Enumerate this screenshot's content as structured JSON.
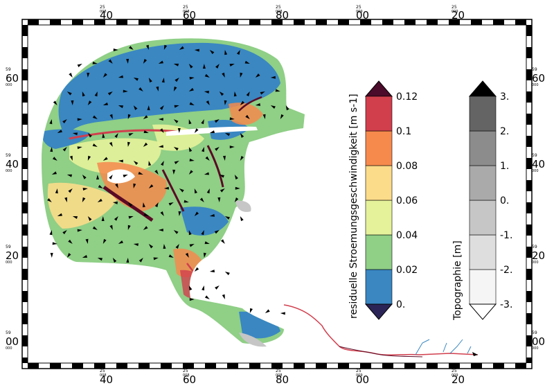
{
  "axes": {
    "x_ticks": [
      {
        "label": "40",
        "minute": "25",
        "deg": "008"
      },
      {
        "label": "60",
        "minute": "25",
        "deg": "008"
      },
      {
        "label": "80",
        "minute": "25",
        "deg": "008"
      },
      {
        "label": "00",
        "minute": "25",
        "deg": "009"
      },
      {
        "label": "20",
        "minute": "25",
        "deg": "009"
      }
    ],
    "y_ticks": [
      {
        "label": "60",
        "minute": "59",
        "deg": "000"
      },
      {
        "label": "40",
        "minute": "59",
        "deg": "000"
      },
      {
        "label": "20",
        "minute": "59",
        "deg": "000"
      },
      {
        "label": "00",
        "minute": "59",
        "deg": "000"
      }
    ]
  },
  "legend_speed": {
    "title": "residuelle Stroemungsgeschwindigkeit [m s-1]",
    "labels": [
      "0.",
      "0.02",
      "0.04",
      "0.06",
      "0.08",
      "0.1",
      "0.12"
    ],
    "colors": [
      "#3a87c2",
      "#8fcf86",
      "#e5f29a",
      "#fbdc8a",
      "#f68a4d",
      "#d13f4d"
    ],
    "under_color": "#2b2456",
    "over_color": "#4b0b2a"
  },
  "legend_topo": {
    "title": "Topographie [m]",
    "labels": [
      "-3.",
      "-2.",
      "-1.",
      "0.",
      "1.",
      "2.",
      "3."
    ],
    "colors": [
      "#f5f5f5",
      "#dedede",
      "#c6c6c6",
      "#aaaaaa",
      "#8c8c8c",
      "#646464"
    ],
    "under_color": "#ffffff",
    "over_color": "#000000"
  },
  "map_colors": {
    "water_blue": "#3a87c2",
    "green": "#8fcf86",
    "yellow": "#e5f29a",
    "orange": "#f68a4d",
    "red": "#d13f4d",
    "dark": "#5a0a25",
    "river_red": "#d13f4d",
    "river_blue": "#3a87c2"
  }
}
